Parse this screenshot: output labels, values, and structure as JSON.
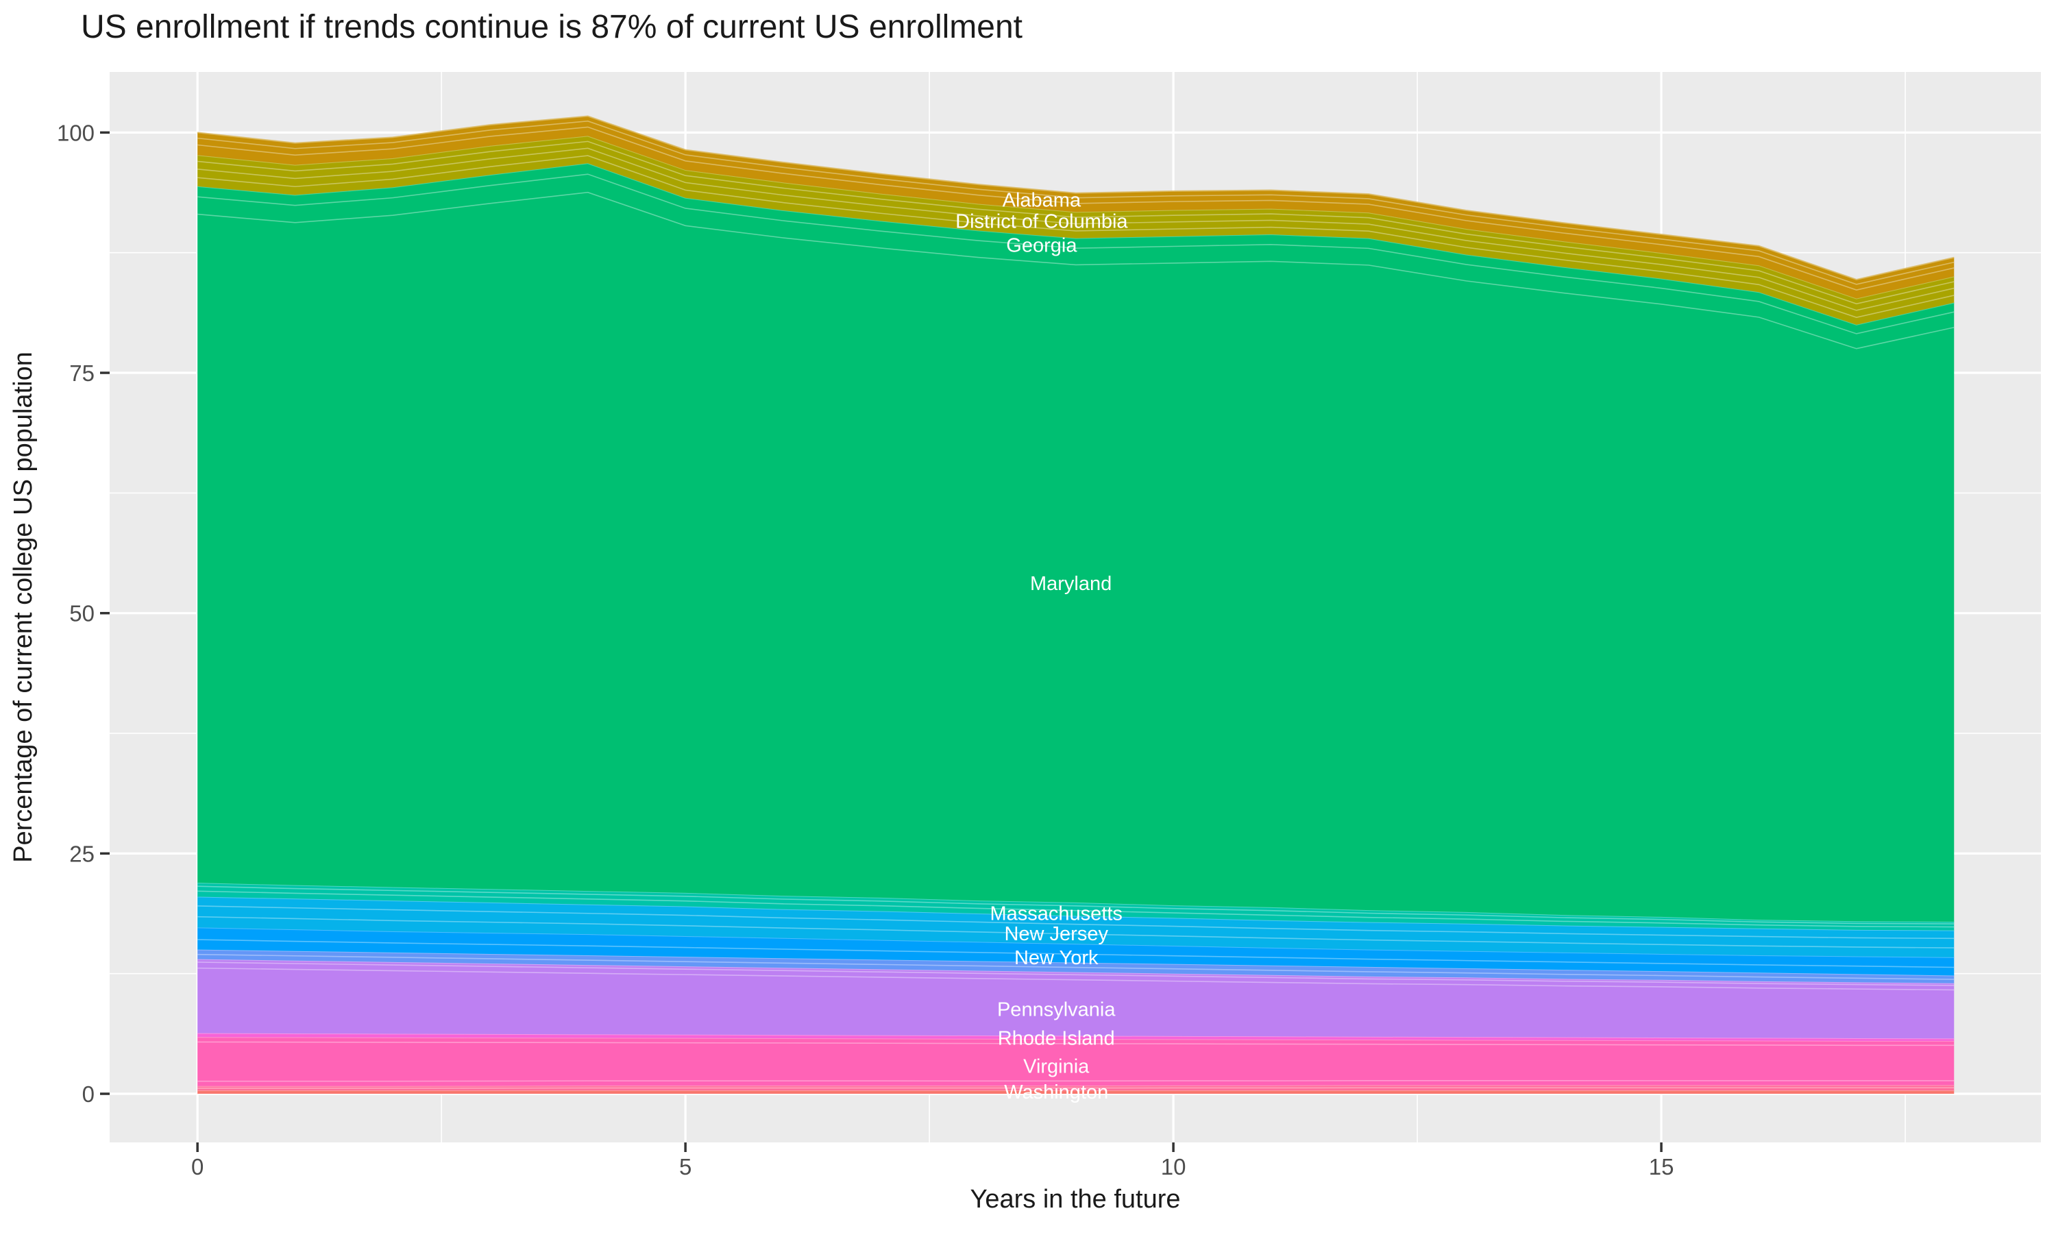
{
  "title": "US enrollment if trends continue is 87% of current US enrollment",
  "colors": {
    "panel_bg": "#EBEBEB",
    "grid": "#FFFFFF",
    "tick_mark": "#333333",
    "tick_text": "#4D4D4D",
    "title_text": "#1A1A1A",
    "state_label_text": "#FFFFFF"
  },
  "axes": {
    "x": {
      "title": "Years in the future",
      "domain": [
        -0.9,
        18.89
      ],
      "major_ticks": [
        {
          "v": 0,
          "label": "0"
        },
        {
          "v": 5,
          "label": "5"
        },
        {
          "v": 10,
          "label": "10"
        },
        {
          "v": 15,
          "label": "15"
        }
      ],
      "minor": [
        2.5,
        7.5,
        12.5,
        17.5
      ]
    },
    "y": {
      "title": "Percentage of current college US population",
      "domain": [
        -5.06,
        106.3
      ],
      "major_ticks": [
        {
          "v": 0,
          "label": "0"
        },
        {
          "v": 25,
          "label": "25"
        },
        {
          "v": 50,
          "label": "50"
        },
        {
          "v": 75,
          "label": "75"
        },
        {
          "v": 100,
          "label": "100"
        }
      ],
      "minor": [
        12.5,
        37.5,
        62.5,
        87.5
      ]
    }
  },
  "chart_data": {
    "type": "area",
    "stacked": true,
    "title": "US enrollment if trends continue is 87% of current US enrollment",
    "xlabel": "Years in the future",
    "ylabel": "Percentage of current college US population",
    "xlim": [
      0,
      18
    ],
    "ylim": [
      0,
      101.7
    ],
    "grid": true,
    "legend": "none",
    "x": [
      0,
      1,
      2,
      3,
      4,
      5,
      6,
      7,
      8,
      9,
      10,
      11,
      12,
      13,
      14,
      15,
      16,
      17,
      18
    ],
    "series": [
      {
        "id": "band-red",
        "label": null,
        "color": "#F8766D",
        "cum_top": [
          0.35,
          0.35,
          0.35,
          0.35,
          0.35,
          0.35,
          0.35,
          0.35,
          0.35,
          0.35,
          0.35,
          0.35,
          0.35,
          0.35,
          0.35,
          0.35,
          0.35,
          0.35,
          0.35
        ]
      },
      {
        "id": "band-salmon-pink",
        "label": null,
        "color": "#FF6E9B",
        "cum_top": [
          0.8,
          0.8,
          0.8,
          0.82,
          0.85,
          0.85,
          0.85,
          0.85,
          0.85,
          0.85,
          0.87,
          0.87,
          0.9,
          0.9,
          0.9,
          0.9,
          0.9,
          0.9,
          0.9
        ]
      },
      {
        "id": "band-pink",
        "label": "Washington / Virginia",
        "color": "#FF63B6",
        "cum_top": [
          5.9,
          5.88,
          5.86,
          5.84,
          5.82,
          5.8,
          5.78,
          5.75,
          5.72,
          5.7,
          5.68,
          5.65,
          5.63,
          5.6,
          5.58,
          5.55,
          5.53,
          5.5,
          5.5
        ]
      },
      {
        "id": "band-magenta",
        "label": "Rhode Island",
        "color": "#F763D8",
        "cum_top": [
          6.3,
          6.27,
          6.24,
          6.21,
          6.18,
          6.15,
          6.12,
          6.09,
          6.06,
          6.03,
          6.0,
          5.97,
          5.94,
          5.91,
          5.88,
          5.85,
          5.82,
          5.78,
          5.75
        ]
      },
      {
        "id": "band-purple",
        "label": "Pennsylvania",
        "color": "#BD80F2",
        "cum_top": [
          14.0,
          13.85,
          13.7,
          13.55,
          13.4,
          13.25,
          13.1,
          12.95,
          12.8,
          12.65,
          12.5,
          12.35,
          12.2,
          12.1,
          11.95,
          11.85,
          11.7,
          11.6,
          11.5
        ]
      },
      {
        "id": "band-blue-violet",
        "label": null,
        "color": "#6497F7",
        "cum_top": [
          15.0,
          14.85,
          14.7,
          14.55,
          14.4,
          14.25,
          14.1,
          13.95,
          13.8,
          13.65,
          13.5,
          13.35,
          13.2,
          13.05,
          12.9,
          12.75,
          12.6,
          12.45,
          12.3
        ]
      },
      {
        "id": "band-blue",
        "label": "New York",
        "color": "#00A0FC",
        "cum_top": [
          17.3,
          17.1,
          16.9,
          16.75,
          16.6,
          16.4,
          16.2,
          16.0,
          15.8,
          15.6,
          15.4,
          15.2,
          15.0,
          14.85,
          14.7,
          14.55,
          14.4,
          14.3,
          14.2
        ]
      },
      {
        "id": "band-cyan",
        "label": "New Jersey / Massachusetts",
        "color": "#06B2EA",
        "cum_top": [
          20.5,
          20.3,
          20.1,
          19.9,
          19.7,
          19.5,
          19.2,
          19.0,
          18.75,
          18.5,
          18.3,
          18.05,
          17.85,
          17.7,
          17.5,
          17.35,
          17.2,
          17.05,
          17.0
        ]
      },
      {
        "id": "band-teal",
        "label": null,
        "color": "#00C4A8",
        "cum_top": [
          21.95,
          21.7,
          21.5,
          21.3,
          21.1,
          20.9,
          20.6,
          20.4,
          20.1,
          19.9,
          19.6,
          19.4,
          19.1,
          18.9,
          18.6,
          18.4,
          18.1,
          17.95,
          17.9
        ]
      },
      {
        "id": "band-green",
        "label": "Maryland",
        "color": "#00BF72",
        "cum_top": [
          94.4,
          93.5,
          94.3,
          95.6,
          96.8,
          93.2,
          91.9,
          90.8,
          89.8,
          89.0,
          89.2,
          89.4,
          89.0,
          87.3,
          86.0,
          84.8,
          83.4,
          80.0,
          82.3
        ]
      },
      {
        "id": "band-olive",
        "label": "Georgia / District of Columbia",
        "color": "#A9A400",
        "cum_top": [
          97.65,
          96.63,
          97.32,
          98.62,
          99.64,
          96.1,
          94.8,
          93.64,
          92.58,
          91.73,
          91.93,
          92.07,
          91.67,
          89.97,
          88.67,
          87.47,
          86.18,
          82.73,
          85.03
        ]
      },
      {
        "id": "band-orange",
        "label": "Alabama",
        "color": "#C79108",
        "cum_top": [
          100.0,
          98.9,
          99.5,
          100.8,
          101.7,
          98.2,
          96.9,
          95.7,
          94.6,
          93.7,
          93.9,
          94.0,
          93.6,
          91.9,
          90.6,
          89.4,
          88.2,
          84.7,
          87.0
        ]
      }
    ],
    "state_labels": [
      {
        "text": "Alabama",
        "x": 8.65,
        "y": 93.0
      },
      {
        "text": "District of Columbia",
        "x": 8.65,
        "y": 90.8
      },
      {
        "text": "Georgia",
        "x": 8.65,
        "y": 88.3
      },
      {
        "text": "Maryland",
        "x": 8.95,
        "y": 53.1
      },
      {
        "text": "Massachusetts",
        "x": 8.8,
        "y": 18.8
      },
      {
        "text": "New Jersey",
        "x": 8.8,
        "y": 16.7
      },
      {
        "text": "New York",
        "x": 8.8,
        "y": 14.2
      },
      {
        "text": "Pennsylvania",
        "x": 8.8,
        "y": 8.8
      },
      {
        "text": "Rhode Island",
        "x": 8.8,
        "y": 5.8
      },
      {
        "text": "Virginia",
        "x": 8.8,
        "y": 2.9
      },
      {
        "text": "Washington",
        "x": 8.8,
        "y": 0.2
      }
    ]
  }
}
